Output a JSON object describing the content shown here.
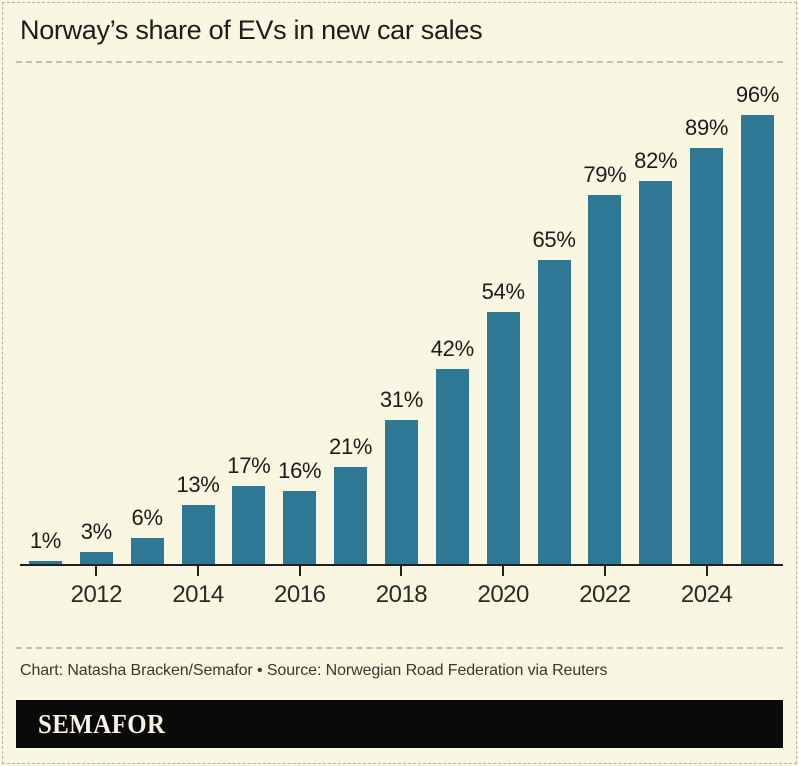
{
  "frame": {
    "background": "#f9f6e2",
    "border_color": "#b7b4a3"
  },
  "header": {
    "title": "Norway’s share of EVs in new car sales"
  },
  "chart_data": {
    "type": "bar",
    "categories": [
      2011,
      2012,
      2013,
      2014,
      2015,
      2016,
      2017,
      2018,
      2019,
      2020,
      2021,
      2022,
      2023,
      2024,
      2025
    ],
    "values": [
      1,
      3,
      6,
      13,
      17,
      16,
      21,
      31,
      42,
      54,
      65,
      79,
      82,
      89,
      96
    ],
    "bar_labels": [
      "1%",
      "3%",
      "6%",
      "13%",
      "17%",
      "16%",
      "21%",
      "31%",
      "42%",
      "54%",
      "65%",
      "79%",
      "82%",
      "89%",
      "96%"
    ],
    "x_tick_labels": [
      "2012",
      "2014",
      "2016",
      "2018",
      "2020",
      "2022",
      "2024"
    ],
    "title": "Norway’s share of EVs in new car sales",
    "xlabel": "",
    "ylabel": "",
    "ylim": [
      0,
      100
    ],
    "grid": false,
    "legend": "none",
    "bar_color": "#2e7795",
    "axis_color": "#1f1f1d"
  },
  "footer": {
    "credit": "Chart: Natasha Bracken/Semafor • Source: Norwegian Road Federation via Reuters",
    "logo_text": "SEMAFOR",
    "logo_bg": "#0a0a08",
    "logo_fg": "#f7f3e0"
  }
}
